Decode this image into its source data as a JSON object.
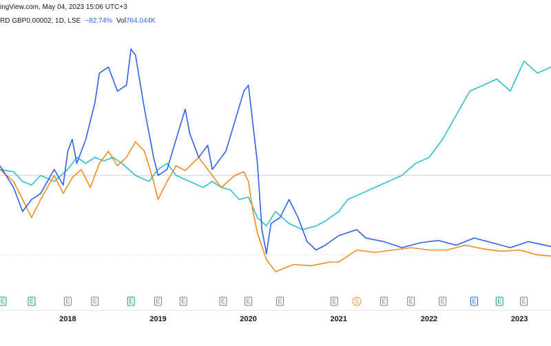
{
  "header": {
    "source_line": "ingView.com, May 04, 2023 15:06 UTC+3",
    "symbol_fragment": "RD GBP0.00002, 1D, LSE",
    "change": "−82.74%",
    "volume_label": "Vol",
    "volume_value": "764.044K"
  },
  "chart_data": {
    "type": "line",
    "title": "",
    "xlabel": "",
    "ylabel": "",
    "x_tick_labels": [
      "2018",
      "2019",
      "2020",
      "2021",
      "2022",
      "2023"
    ],
    "x_range": [
      2017.25,
      2023.35
    ],
    "y_range": [
      -100,
      120
    ],
    "grid": false,
    "reference_lines": [
      0,
      -66
    ],
    "series": [
      {
        "color": "#2e5ff0",
        "x": [
          2017.25,
          2017.4,
          2017.5,
          2017.6,
          2017.7,
          2017.85,
          2017.95,
          2018.0,
          2018.05,
          2018.1,
          2018.2,
          2018.3,
          2018.35,
          2018.45,
          2018.55,
          2018.65,
          2018.7,
          2018.75,
          2018.85,
          2018.95,
          2019.0,
          2019.1,
          2019.2,
          2019.3,
          2019.35,
          2019.45,
          2019.55,
          2019.6,
          2019.75,
          2019.85,
          2019.95,
          2020.0,
          2020.1,
          2020.15,
          2020.2,
          2020.25,
          2020.35,
          2020.45,
          2020.55,
          2020.65,
          2020.75,
          2020.85,
          2021.0,
          2021.2,
          2021.3,
          2021.5,
          2021.7,
          2021.9,
          2022.1,
          2022.3,
          2022.5,
          2022.7,
          2022.9,
          2023.1,
          2023.35
        ],
        "y": [
          8,
          -10,
          -30,
          -20,
          -15,
          5,
          -8,
          20,
          30,
          10,
          30,
          60,
          85,
          90,
          70,
          75,
          105,
          100,
          55,
          15,
          0,
          5,
          30,
          55,
          35,
          15,
          25,
          5,
          20,
          45,
          70,
          75,
          10,
          -45,
          -65,
          -40,
          -35,
          -20,
          -35,
          -55,
          -62,
          -58,
          -50,
          -45,
          -52,
          -55,
          -60,
          -56,
          -54,
          -58,
          -52,
          -56,
          -60,
          -55,
          -59
        ],
        "name": ""
      },
      {
        "color": "#f5891f",
        "x": [
          2017.25,
          2017.4,
          2017.5,
          2017.6,
          2017.7,
          2017.85,
          2017.95,
          2018.05,
          2018.15,
          2018.25,
          2018.35,
          2018.45,
          2018.55,
          2018.65,
          2018.75,
          2018.85,
          2018.95,
          2019.0,
          2019.1,
          2019.2,
          2019.3,
          2019.45,
          2019.55,
          2019.7,
          2019.85,
          2019.95,
          2020.0,
          2020.05,
          2020.1,
          2020.2,
          2020.3,
          2020.5,
          2020.7,
          2020.9,
          2021.0,
          2021.2,
          2021.4,
          2021.6,
          2021.8,
          2022.0,
          2022.2,
          2022.4,
          2022.6,
          2022.8,
          2023.0,
          2023.2,
          2023.35
        ],
        "y": [
          5,
          -5,
          -20,
          -35,
          -20,
          0,
          -15,
          -2,
          5,
          -10,
          10,
          20,
          8,
          15,
          28,
          20,
          -5,
          -20,
          -5,
          8,
          4,
          15,
          5,
          -10,
          0,
          3,
          -5,
          -30,
          -48,
          -70,
          -80,
          -74,
          -75,
          -72,
          -72,
          -62,
          -64,
          -62,
          -60,
          -62,
          -62,
          -58,
          -61,
          -63,
          -62,
          -66,
          -67
        ],
        "name": ""
      },
      {
        "color": "#28c0c9",
        "x": [
          2017.25,
          2017.4,
          2017.5,
          2017.6,
          2017.7,
          2017.85,
          2018.0,
          2018.1,
          2018.2,
          2018.3,
          2018.4,
          2018.5,
          2018.6,
          2018.75,
          2018.9,
          2019.0,
          2019.1,
          2019.2,
          2019.35,
          2019.5,
          2019.6,
          2019.7,
          2019.8,
          2019.9,
          2020.0,
          2020.1,
          2020.2,
          2020.3,
          2020.45,
          2020.6,
          2020.75,
          2020.85,
          2021.0,
          2021.1,
          2021.25,
          2021.4,
          2021.55,
          2021.7,
          2021.85,
          2022.0,
          2022.15,
          2022.3,
          2022.45,
          2022.6,
          2022.75,
          2022.9,
          2023.05,
          2023.2,
          2023.35
        ],
        "y": [
          5,
          3,
          -5,
          -8,
          0,
          -5,
          5,
          15,
          10,
          15,
          12,
          15,
          10,
          0,
          -5,
          5,
          10,
          0,
          -5,
          -10,
          -5,
          -10,
          -12,
          -20,
          -18,
          -35,
          -42,
          -30,
          -40,
          -45,
          -42,
          -38,
          -30,
          -20,
          -15,
          -10,
          -5,
          0,
          10,
          15,
          30,
          50,
          70,
          75,
          80,
          70,
          95,
          85,
          90
        ],
        "name": ""
      }
    ],
    "event_markers": [
      {
        "label": "E",
        "year": 2017.28,
        "color": "#089981"
      },
      {
        "label": "E",
        "year": 2017.6,
        "color": "#089981"
      },
      {
        "label": "E",
        "year": 2018.0,
        "color": "#787b86"
      },
      {
        "label": "E",
        "year": 2018.3,
        "color": "#787b86"
      },
      {
        "label": "E",
        "year": 2018.7,
        "color": "#089981"
      },
      {
        "label": "E",
        "year": 2019.0,
        "color": "#787b86"
      },
      {
        "label": "E",
        "year": 2019.28,
        "color": "#787b86"
      },
      {
        "label": "E",
        "year": 2019.72,
        "color": "#787b86"
      },
      {
        "label": "E",
        "year": 2020.0,
        "color": "#787b86"
      },
      {
        "label": "E",
        "year": 2020.35,
        "color": "#787b86"
      },
      {
        "label": "E",
        "year": 2020.95,
        "color": "#787b86"
      },
      {
        "label": "S",
        "year": 2021.2,
        "color": "#f5891f"
      },
      {
        "label": "E",
        "year": 2021.5,
        "color": "#787b86"
      },
      {
        "label": "E",
        "year": 2021.8,
        "color": "#787b86"
      },
      {
        "label": "E",
        "year": 2022.15,
        "color": "#787b86"
      },
      {
        "label": "E",
        "year": 2022.5,
        "color": "#2962ff"
      },
      {
        "label": "E",
        "year": 2022.78,
        "color": "#089981"
      },
      {
        "label": "E",
        "year": 2023.05,
        "color": "#787b86"
      }
    ]
  }
}
